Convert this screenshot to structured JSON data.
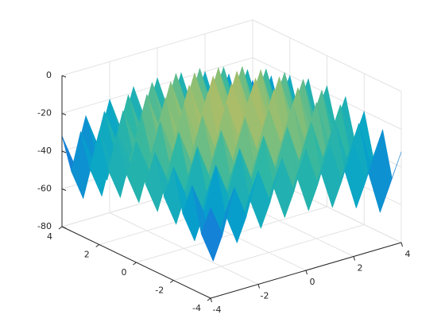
{
  "chart_data": {
    "type": "surface",
    "colormap": "parula",
    "grid": true,
    "x": [
      -4,
      -3.5,
      -3,
      -2.5,
      -2,
      -1.5,
      -1,
      -0.5,
      0,
      0.5,
      1,
      1.5,
      2,
      2.5,
      3,
      3.5,
      4
    ],
    "y": [
      -4,
      -3.5,
      -3,
      -2.5,
      -2,
      -1.5,
      -1,
      -0.5,
      0,
      0.5,
      1,
      1.5,
      2,
      2.5,
      3,
      3.5,
      4
    ],
    "z": [
      [
        -32,
        -48.25,
        -25,
        -42.25,
        -20,
        -38.25,
        -17,
        -36.25,
        -16,
        -36.25,
        -17,
        -38.25,
        -20,
        -42.25,
        -25,
        -48.25,
        -32
      ],
      [
        -48.25,
        -64.5,
        -41.25,
        -58.5,
        -36.25,
        -54.5,
        -33.25,
        -52.5,
        -32.25,
        -52.5,
        -33.25,
        -54.5,
        -36.25,
        -58.5,
        -41.25,
        -64.5,
        -48.25
      ],
      [
        -25,
        -41.25,
        -18,
        -35.25,
        -13,
        -31.25,
        -10,
        -29.25,
        -9,
        -29.25,
        -10,
        -31.25,
        -13,
        -35.25,
        -18,
        -41.25,
        -25
      ],
      [
        -42.25,
        -58.5,
        -35.25,
        -52.5,
        -30.25,
        -48.5,
        -27.25,
        -46.5,
        -26.25,
        -46.5,
        -27.25,
        -48.5,
        -30.25,
        -52.5,
        -35.25,
        -58.5,
        -42.25
      ],
      [
        -20,
        -36.25,
        -13,
        -30.25,
        -8,
        -26.25,
        -5,
        -24.25,
        -4,
        -24.25,
        -5,
        -26.25,
        -8,
        -30.25,
        -13,
        -36.25,
        -20
      ],
      [
        -38.25,
        -54.5,
        -31.25,
        -48.5,
        -26.25,
        -44.5,
        -23.25,
        -42.5,
        -22.25,
        -42.5,
        -23.25,
        -44.5,
        -26.25,
        -48.5,
        -31.25,
        -54.5,
        -38.25
      ],
      [
        -17,
        -33.25,
        -10,
        -27.25,
        -5,
        -23.25,
        -2,
        -21.25,
        -1,
        -21.25,
        -2,
        -23.25,
        -5,
        -27.25,
        -10,
        -33.25,
        -17
      ],
      [
        -36.25,
        -52.5,
        -29.25,
        -46.5,
        -24.25,
        -42.5,
        -21.25,
        -40.5,
        -20.25,
        -40.5,
        -21.25,
        -42.5,
        -24.25,
        -46.5,
        -29.25,
        -52.5,
        -36.25
      ],
      [
        -16,
        -32.25,
        -9,
        -26.25,
        -4,
        -22.25,
        -1,
        -20.25,
        0,
        -20.25,
        -1,
        -22.25,
        -4,
        -26.25,
        -9,
        -32.25,
        -16
      ],
      [
        -36.25,
        -52.5,
        -29.25,
        -46.5,
        -24.25,
        -42.5,
        -21.25,
        -40.5,
        -20.25,
        -40.5,
        -21.25,
        -42.5,
        -24.25,
        -46.5,
        -29.25,
        -52.5,
        -36.25
      ],
      [
        -17,
        -33.25,
        -10,
        -27.25,
        -5,
        -23.25,
        -2,
        -21.25,
        -1,
        -21.25,
        -2,
        -23.25,
        -5,
        -27.25,
        -10,
        -33.25,
        -17
      ],
      [
        -38.25,
        -54.5,
        -31.25,
        -48.5,
        -26.25,
        -44.5,
        -23.25,
        -42.5,
        -22.25,
        -42.5,
        -23.25,
        -44.5,
        -26.25,
        -48.5,
        -31.25,
        -54.5,
        -38.25
      ],
      [
        -20,
        -36.25,
        -13,
        -30.25,
        -8,
        -26.25,
        -5,
        -24.25,
        -4,
        -24.25,
        -5,
        -26.25,
        -8,
        -30.25,
        -13,
        -36.25,
        -20
      ],
      [
        -42.25,
        -58.5,
        -35.25,
        -52.5,
        -30.25,
        -48.5,
        -27.25,
        -46.5,
        -26.25,
        -46.5,
        -27.25,
        -48.5,
        -30.25,
        -52.5,
        -35.25,
        -58.5,
        -42.25
      ],
      [
        -25,
        -41.25,
        -18,
        -35.25,
        -13,
        -31.25,
        -10,
        -29.25,
        -9,
        -29.25,
        -10,
        -31.25,
        -13,
        -35.25,
        -18,
        -41.25,
        -25
      ],
      [
        -48.25,
        -64.5,
        -41.25,
        -58.5,
        -36.25,
        -54.5,
        -33.25,
        -52.5,
        -32.25,
        -52.5,
        -33.25,
        -54.5,
        -36.25,
        -58.5,
        -41.25,
        -64.5,
        -48.25
      ],
      [
        -32,
        -48.25,
        -25,
        -42.25,
        -20,
        -38.25,
        -17,
        -36.25,
        -16,
        -36.25,
        -17,
        -38.25,
        -20,
        -42.25,
        -25,
        -48.25,
        -32
      ]
    ],
    "xlim": [
      -4,
      4
    ],
    "ylim": [
      -4,
      4
    ],
    "zlim": [
      -80,
      0
    ],
    "xticks": [
      -4,
      -2,
      0,
      2,
      4
    ],
    "yticks": [
      -4,
      -2,
      0,
      2,
      4
    ],
    "zticks": [
      -80,
      -60,
      -40,
      -20,
      0
    ]
  }
}
